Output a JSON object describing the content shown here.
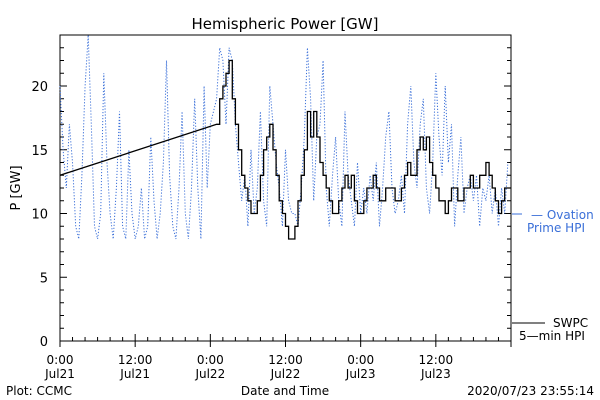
{
  "chart_data": {
    "type": "line",
    "title": "Hemispheric Power [GW]",
    "xlabel": "Date and Time",
    "ylabel": "P [GW]",
    "ylim": [
      0,
      24
    ],
    "xlim": [
      0,
      72
    ],
    "y_ticks": [
      0,
      5,
      10,
      15,
      20
    ],
    "x_ticks": [
      {
        "x": 0,
        "time": "0:00",
        "date": "Jul21"
      },
      {
        "x": 12,
        "time": "12:00",
        "date": "Jul21"
      },
      {
        "x": 24,
        "time": "0:00",
        "date": "Jul22"
      },
      {
        "x": 36,
        "time": "12:00",
        "date": "Jul22"
      },
      {
        "x": 48,
        "time": "0:00",
        "date": "Jul23"
      },
      {
        "x": 60,
        "time": "12:00",
        "date": "Jul23"
      }
    ],
    "x_unit": "hours since 2020-07-21 00:00",
    "footer_left": "Plot: CCMC",
    "footer_right": "2020/07/23 23:55:14",
    "legend_ovation": [
      "— Ovation",
      "Prime HPI"
    ],
    "legend_swpc": [
      "SWPC",
      "5—min HPI"
    ],
    "colors": {
      "ovation": "#3a6fd8",
      "swpc": "#000000",
      "axis": "#000000"
    },
    "series": [
      {
        "name": "SWPC 5-min HPI",
        "style": "solid",
        "x": [
          0,
          25.0,
          25.5,
          26.0,
          26.5,
          27.0,
          27.5,
          28.0,
          28.5,
          29.0,
          29.5,
          30.0,
          30.5,
          31.0,
          31.5,
          32.0,
          32.5,
          33.0,
          33.5,
          34.0,
          34.5,
          35.0,
          35.5,
          36.0,
          36.5,
          37.0,
          37.5,
          38.0,
          38.5,
          39.0,
          39.5,
          40.0,
          40.5,
          41.0,
          41.5,
          42.0,
          42.5,
          43.0,
          43.5,
          44.0,
          44.5,
          45.0,
          45.5,
          46.0,
          46.5,
          47.0,
          47.5,
          48.0,
          48.5,
          49.0,
          49.5,
          50.0,
          50.5,
          51.0,
          51.5,
          52.0,
          52.5,
          53.0,
          53.5,
          54.0,
          54.5,
          55.0,
          55.5,
          56.0,
          56.5,
          57.0,
          57.5,
          58.0,
          58.5,
          59.0,
          59.5,
          60.0,
          60.5,
          61.0,
          61.5,
          62.0,
          62.5,
          63.0,
          63.5,
          64.0,
          64.5,
          65.0,
          65.5,
          66.0,
          66.5,
          67.0,
          67.5,
          68.0,
          68.5,
          69.0,
          69.5,
          70.0,
          70.5,
          71.0,
          71.5
        ],
        "y": [
          13,
          17,
          19,
          20,
          21,
          22,
          19,
          17,
          15,
          13,
          12,
          11,
          10,
          10,
          11,
          13,
          15,
          16,
          17,
          15,
          13,
          11,
          10,
          9,
          8,
          8,
          9,
          11,
          13,
          15,
          18,
          16,
          18,
          16,
          14,
          13,
          12,
          11,
          10,
          10,
          11,
          12,
          13,
          12,
          13,
          11,
          10,
          10,
          11,
          12,
          12,
          13,
          12,
          11,
          11,
          12,
          12,
          12,
          11,
          11,
          12,
          13,
          14,
          13,
          13,
          15,
          16,
          15,
          16,
          14,
          13,
          12,
          11,
          11,
          10,
          11,
          12,
          12,
          11,
          11,
          12,
          12,
          13,
          12,
          12,
          13,
          13,
          14,
          13,
          12,
          11,
          10,
          11,
          12,
          12
        ],
        "straight_segment_end": 25.0
      },
      {
        "name": "Ovation Prime HPI",
        "style": "dotted",
        "x": [
          0,
          0.5,
          1.0,
          1.5,
          2.0,
          2.5,
          3.0,
          3.5,
          4.0,
          4.5,
          5.0,
          5.5,
          6.0,
          6.5,
          7.0,
          7.5,
          8.0,
          8.5,
          9.0,
          9.5,
          10.0,
          10.5,
          11.0,
          11.5,
          12.0,
          12.5,
          13.0,
          13.5,
          14.0,
          14.5,
          15.0,
          15.5,
          16.0,
          16.5,
          17.0,
          17.5,
          18.0,
          18.5,
          19.0,
          19.5,
          20.0,
          20.5,
          21.0,
          21.5,
          22.0,
          22.5,
          23.0,
          23.5,
          24.0,
          24.5,
          25.0,
          25.5,
          26.0,
          26.5,
          27.0,
          27.5,
          28.0,
          28.5,
          29.0,
          29.5,
          30.0,
          30.5,
          31.0,
          31.5,
          32.0,
          32.5,
          33.0,
          33.5,
          34.0,
          34.5,
          35.0,
          35.5,
          36.0,
          36.5,
          37.0,
          37.5,
          38.0,
          38.5,
          39.0,
          39.5,
          40.0,
          40.5,
          41.0,
          41.5,
          42.0,
          42.5,
          43.0,
          43.5,
          44.0,
          44.5,
          45.0,
          45.5,
          46.0,
          46.5,
          47.0,
          47.5,
          48.0,
          48.5,
          49.0,
          49.5,
          50.0,
          50.5,
          51.0,
          51.5,
          52.0,
          52.5,
          53.0,
          53.5,
          54.0,
          54.5,
          55.0,
          55.5,
          56.0,
          56.5,
          57.0,
          57.5,
          58.0,
          58.5,
          59.0,
          59.5,
          60.0,
          60.5,
          61.0,
          61.5,
          62.0,
          62.5,
          63.0,
          63.5,
          64.0,
          64.5,
          65.0,
          65.5,
          66.0,
          66.5,
          67.0,
          67.5,
          68.0,
          68.5,
          69.0,
          69.5,
          70.0,
          70.5,
          71.0,
          71.5
        ],
        "y": [
          20,
          15,
          12,
          17,
          14,
          9,
          8,
          13,
          20,
          24,
          17,
          9,
          8,
          10,
          21,
          14,
          10,
          8,
          12,
          18,
          9,
          8,
          15,
          10,
          8,
          9,
          12,
          8,
          9,
          16,
          11,
          8,
          10,
          14,
          22,
          13,
          9,
          8,
          12,
          18,
          10,
          8,
          12,
          19,
          12,
          8,
          20,
          12,
          17,
          18,
          19,
          23,
          22,
          17,
          23,
          22,
          17,
          14,
          11,
          13,
          9,
          15,
          10,
          12,
          18,
          11,
          9,
          20,
          17,
          14,
          12,
          9,
          15,
          11,
          10,
          10,
          9,
          12,
          16,
          23,
          19,
          11,
          16,
          17,
          22,
          12,
          9,
          13,
          16,
          11,
          9,
          18,
          13,
          11,
          9,
          14,
          10,
          12,
          10,
          13,
          11,
          14,
          9,
          12,
          16,
          18,
          12,
          10,
          11,
          13,
          10,
          17,
          20,
          14,
          12,
          17,
          19,
          12,
          10,
          14,
          21,
          16,
          13,
          20,
          14,
          17,
          9,
          13,
          16,
          10,
          12,
          13,
          11,
          13,
          9,
          12,
          11,
          13,
          10,
          12,
          9,
          12,
          10,
          14
        ]
      }
    ]
  }
}
